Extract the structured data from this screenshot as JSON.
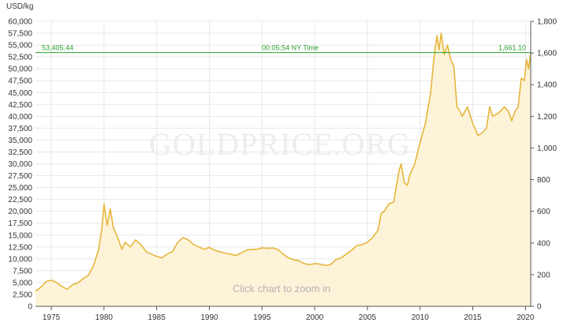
{
  "chart_data": {
    "type": "area",
    "y_unit_left": "USD/kg",
    "watermark": "GOLDPRICE.ORG",
    "hint": "Click chart to zoom in",
    "reference_line": {
      "left_value": "53,405.44",
      "time_label": "00:05:54 NY Time",
      "right_value": "1,661.10"
    },
    "x_range": [
      1973.5,
      2020.5
    ],
    "x_ticks": [
      1975,
      1980,
      1985,
      1990,
      1995,
      2000,
      2005,
      2010,
      2015,
      2020
    ],
    "y_left_range": [
      0,
      60000
    ],
    "y_left_ticks": [
      "0",
      "2,500",
      "5,000",
      "7,500",
      "10,000",
      "12,500",
      "15,000",
      "17,500",
      "20,000",
      "22,500",
      "25,000",
      "27,500",
      "30,000",
      "32,500",
      "35,000",
      "37,500",
      "40,000",
      "42,500",
      "45,000",
      "47,500",
      "50,000",
      "52,500",
      "55,000",
      "57,500",
      "60,000"
    ],
    "y_right_range": [
      0,
      1800
    ],
    "y_right_ticks": [
      "0",
      "200",
      "400",
      "600",
      "800",
      "1,000",
      "1,200",
      "1,400",
      "1,600",
      "1,800"
    ],
    "grid": true,
    "colors": {
      "line": "#e6b63c",
      "fill": "#fdf3d9",
      "reference": "#2ea02e",
      "grid": "#e8e8e8"
    },
    "series": [
      {
        "x": [
          1973.5,
          1974.0,
          1974.5,
          1975.0,
          1975.5,
          1976.0,
          1976.5,
          1977.0,
          1977.5,
          1978.0,
          1978.5,
          1979.0,
          1979.5,
          1979.8,
          1980.0,
          1980.3,
          1980.6,
          1980.9,
          1981.3,
          1981.7,
          1982.0,
          1982.5,
          1983.0,
          1983.5,
          1984.0,
          1984.5,
          1985.0,
          1985.5,
          1986.0,
          1986.5,
          1987.0,
          1987.5,
          1988.0,
          1988.5,
          1989.0,
          1989.5,
          1990.0,
          1990.5,
          1991.0,
          1991.5,
          1992.0,
          1992.5,
          1993.0,
          1993.5,
          1994.0,
          1994.5,
          1995.0,
          1995.5,
          1996.0,
          1996.5,
          1997.0,
          1997.5,
          1998.0,
          1998.5,
          1999.0,
          1999.5,
          2000.0,
          2000.5,
          2001.0,
          2001.5,
          2002.0,
          2002.5,
          2003.0,
          2003.5,
          2004.0,
          2004.5,
          2005.0,
          2005.5,
          2006.0,
          2006.3,
          2006.6,
          2007.0,
          2007.5,
          2008.0,
          2008.2,
          2008.5,
          2008.8,
          2009.0,
          2009.5,
          2010.0,
          2010.5,
          2011.0,
          2011.3,
          2011.6,
          2011.8,
          2012.0,
          2012.3,
          2012.6,
          2012.9,
          2013.2,
          2013.5,
          2013.8,
          2014.0,
          2014.5,
          2015.0,
          2015.5,
          2015.9,
          2016.3,
          2016.6,
          2016.9,
          2017.3,
          2017.6,
          2018.0,
          2018.4,
          2018.7,
          2019.0,
          2019.3,
          2019.6,
          2019.9,
          2020.1,
          2020.3,
          2020.5
        ],
        "y": [
          3200,
          4000,
          5200,
          5500,
          5000,
          4200,
          3600,
          4500,
          4900,
          5800,
          6500,
          8500,
          12000,
          16500,
          21500,
          17000,
          20500,
          16500,
          14500,
          12000,
          13500,
          12500,
          14000,
          13000,
          11500,
          11000,
          10500,
          10200,
          11000,
          11500,
          13500,
          14500,
          14000,
          13000,
          12500,
          12000,
          12400,
          11800,
          11500,
          11200,
          11000,
          10700,
          11200,
          11800,
          12000,
          12000,
          12300,
          12200,
          12300,
          12000,
          11000,
          10200,
          9800,
          9600,
          9000,
          8800,
          9000,
          8900,
          8600,
          8800,
          9800,
          10200,
          11000,
          11800,
          12800,
          13000,
          13500,
          14500,
          16000,
          19500,
          20000,
          21500,
          22000,
          28500,
          30000,
          26000,
          25500,
          27500,
          30000,
          34500,
          38500,
          45000,
          52000,
          57000,
          54000,
          57500,
          53000,
          55000,
          52000,
          50500,
          42000,
          41000,
          40000,
          42000,
          38500,
          36000,
          36500,
          37500,
          42000,
          40000,
          40500,
          41000,
          42000,
          41000,
          39000,
          41000,
          42000,
          48000,
          47500,
          52000,
          50000,
          53405
        ]
      }
    ]
  }
}
